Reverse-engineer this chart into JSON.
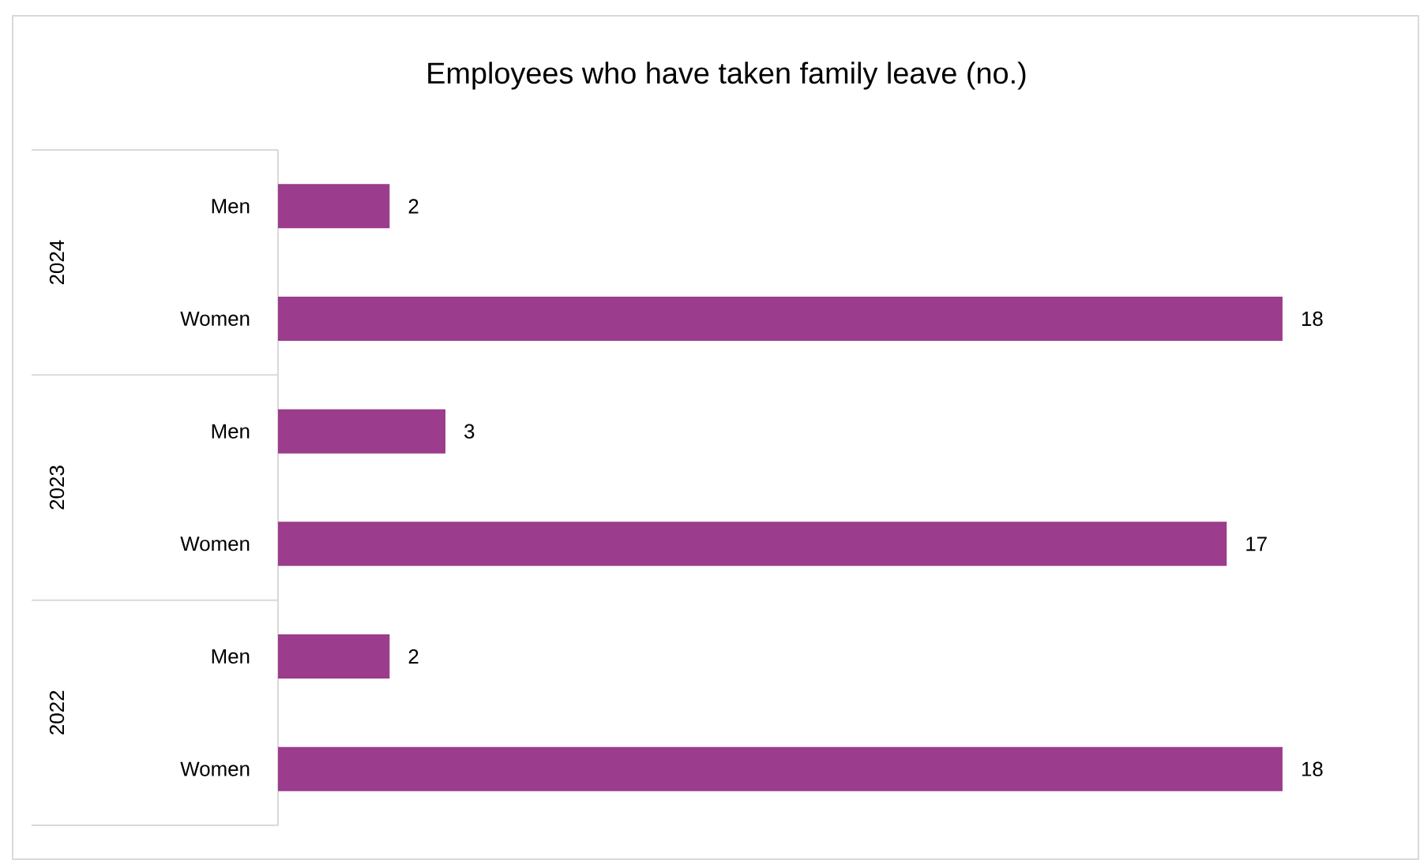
{
  "chart_data": {
    "type": "bar",
    "orientation": "horizontal",
    "title": "Employees who have taken family leave (no.)",
    "categories": [
      "Men",
      "Women",
      "Men",
      "Women",
      "Men",
      "Women"
    ],
    "values": [
      2,
      18,
      3,
      17,
      2,
      18
    ],
    "color": "#9b3c8c",
    "data_labels": true,
    "annotations": [
      "2024",
      "2023",
      "2022"
    ]
  }
}
